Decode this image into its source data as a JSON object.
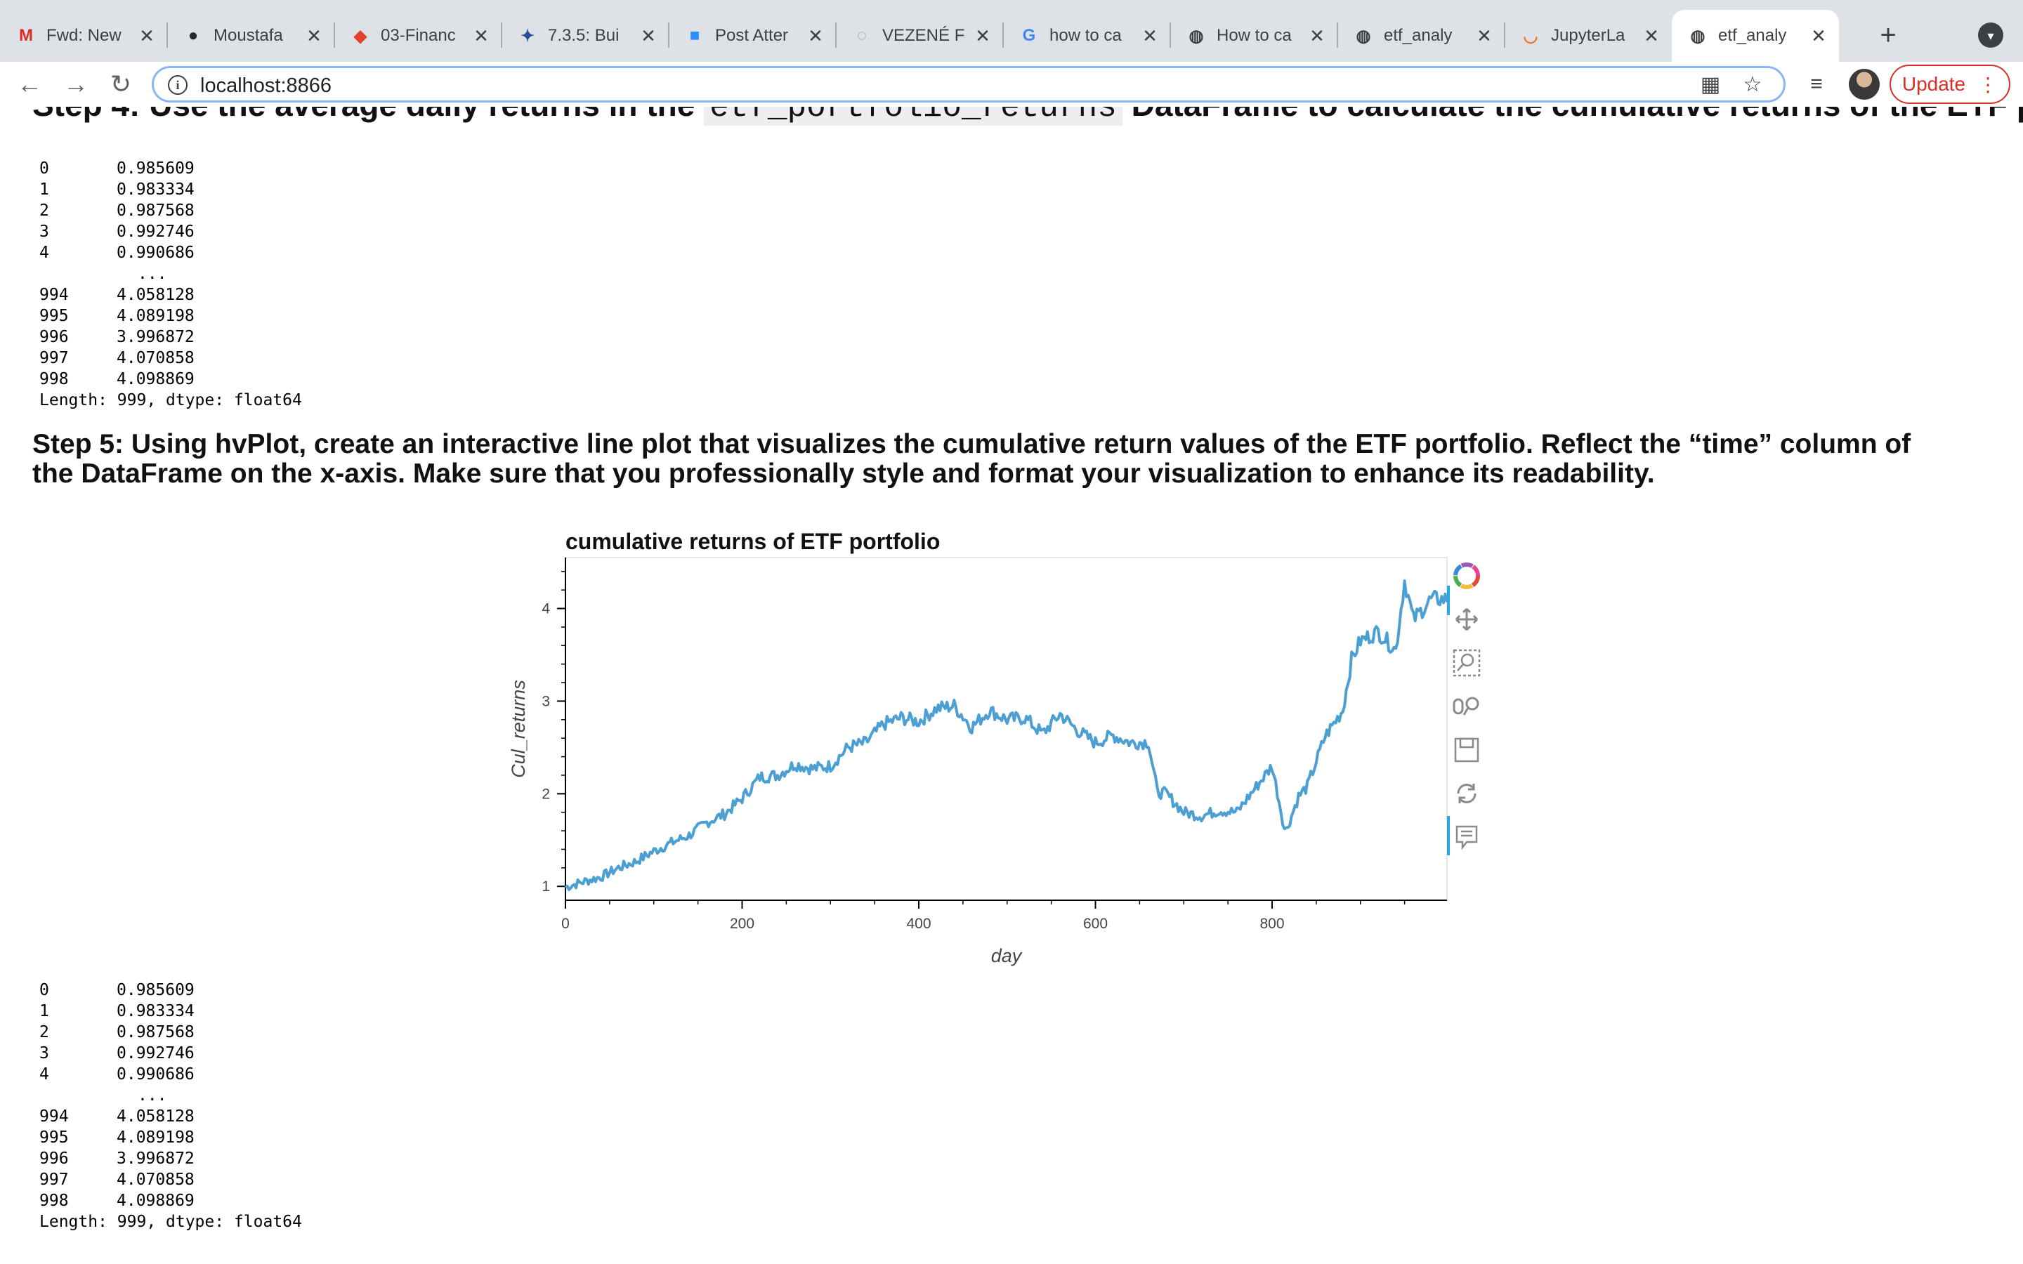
{
  "browser": {
    "tabs": [
      {
        "title": "Fwd: New",
        "icon": "gmail-icon",
        "active": false
      },
      {
        "title": "Moustafa",
        "icon": "github-icon",
        "active": false
      },
      {
        "title": "03-Financ",
        "icon": "gitlab-icon",
        "active": false
      },
      {
        "title": "7.3.5: Bui",
        "icon": "course-icon",
        "active": false
      },
      {
        "title": "Post Atter",
        "icon": "zoom-icon",
        "active": false
      },
      {
        "title": "VEZENÉ F",
        "icon": "loading-icon",
        "active": false
      },
      {
        "title": "how to ca",
        "icon": "google-icon",
        "active": false
      },
      {
        "title": "How to ca",
        "icon": "globe-icon",
        "active": false
      },
      {
        "title": "etf_analy",
        "icon": "globe-icon",
        "active": false
      },
      {
        "title": "JupyterLa",
        "icon": "jupyter-icon",
        "active": false
      },
      {
        "title": "etf_analy",
        "icon": "globe-icon",
        "active": true
      }
    ],
    "url": "localhost:8866",
    "update_label": "Update"
  },
  "notebook": {
    "cut_heading_pre": "Step 4: Use the average daily returns in the ",
    "cut_heading_code": "etf_portfolio_returns",
    "cut_heading_post": " DataFrame to calculate the cumulative returns of the ETF portfolio.",
    "output_1": {
      "head": [
        [
          "0",
          "0.985609"
        ],
        [
          "1",
          "0.983334"
        ],
        [
          "2",
          "0.987568"
        ],
        [
          "3",
          "0.992746"
        ],
        [
          "4",
          "0.990686"
        ]
      ],
      "ellipsis": "...",
      "tail": [
        [
          "994",
          "4.058128"
        ],
        [
          "995",
          "4.089198"
        ],
        [
          "996",
          "3.996872"
        ],
        [
          "997",
          "4.070858"
        ],
        [
          "998",
          "4.098869"
        ]
      ],
      "footer": "Length: 999, dtype: float64"
    },
    "step5_heading": "Step 5: Using hvPlot, create an interactive line plot that visualizes the cumulative return values of the ETF portfolio. Reflect the “time” column of the DataFrame on the x-axis. Make sure that you professionally style and format your visualization to enhance its readability.",
    "output_2": {
      "head": [
        [
          "0",
          "0.985609"
        ],
        [
          "1",
          "0.983334"
        ],
        [
          "2",
          "0.987568"
        ],
        [
          "3",
          "0.992746"
        ],
        [
          "4",
          "0.990686"
        ]
      ],
      "ellipsis": "...",
      "tail": [
        [
          "994",
          "4.058128"
        ],
        [
          "995",
          "4.089198"
        ],
        [
          "996",
          "3.996872"
        ],
        [
          "997",
          "4.070858"
        ],
        [
          "998",
          "4.098869"
        ]
      ],
      "footer": "Length: 999, dtype: float64"
    }
  },
  "chart_data": {
    "type": "line",
    "title": "cumulative returns of ETF portfolio",
    "xlabel": "day",
    "ylabel": "Cul_returns",
    "xlim": [
      0,
      998
    ],
    "ylim": [
      0.85,
      4.55
    ],
    "xticks": [
      0,
      200,
      400,
      600,
      800
    ],
    "yticks": [
      1,
      2,
      3,
      4
    ],
    "grid": false,
    "color": "#4c9fd3",
    "series": [
      {
        "x": [
          0,
          20,
          40,
          60,
          80,
          100,
          120,
          140,
          160,
          180,
          200,
          220,
          240,
          260,
          280,
          300,
          320,
          340,
          360,
          380,
          400,
          420,
          440,
          460,
          480,
          500,
          520,
          540,
          560,
          580,
          600,
          620,
          640,
          660,
          670,
          680,
          700,
          720,
          740,
          760,
          780,
          800,
          815,
          830,
          840,
          860,
          880,
          890,
          900,
          920,
          940,
          950,
          960,
          980,
          998
        ],
        "y": [
          0.99,
          1.05,
          1.1,
          1.2,
          1.27,
          1.38,
          1.47,
          1.55,
          1.69,
          1.78,
          1.95,
          2.18,
          2.2,
          2.32,
          2.27,
          2.3,
          2.5,
          2.55,
          2.75,
          2.82,
          2.78,
          2.92,
          2.95,
          2.72,
          2.9,
          2.8,
          2.82,
          2.65,
          2.86,
          2.68,
          2.55,
          2.63,
          2.55,
          2.56,
          2.02,
          2.0,
          1.8,
          1.76,
          1.82,
          1.8,
          2.05,
          2.3,
          1.58,
          1.97,
          2.08,
          2.62,
          2.9,
          3.45,
          3.65,
          3.75,
          3.55,
          4.3,
          3.88,
          4.1,
          4.1
        ]
      }
    ]
  }
}
